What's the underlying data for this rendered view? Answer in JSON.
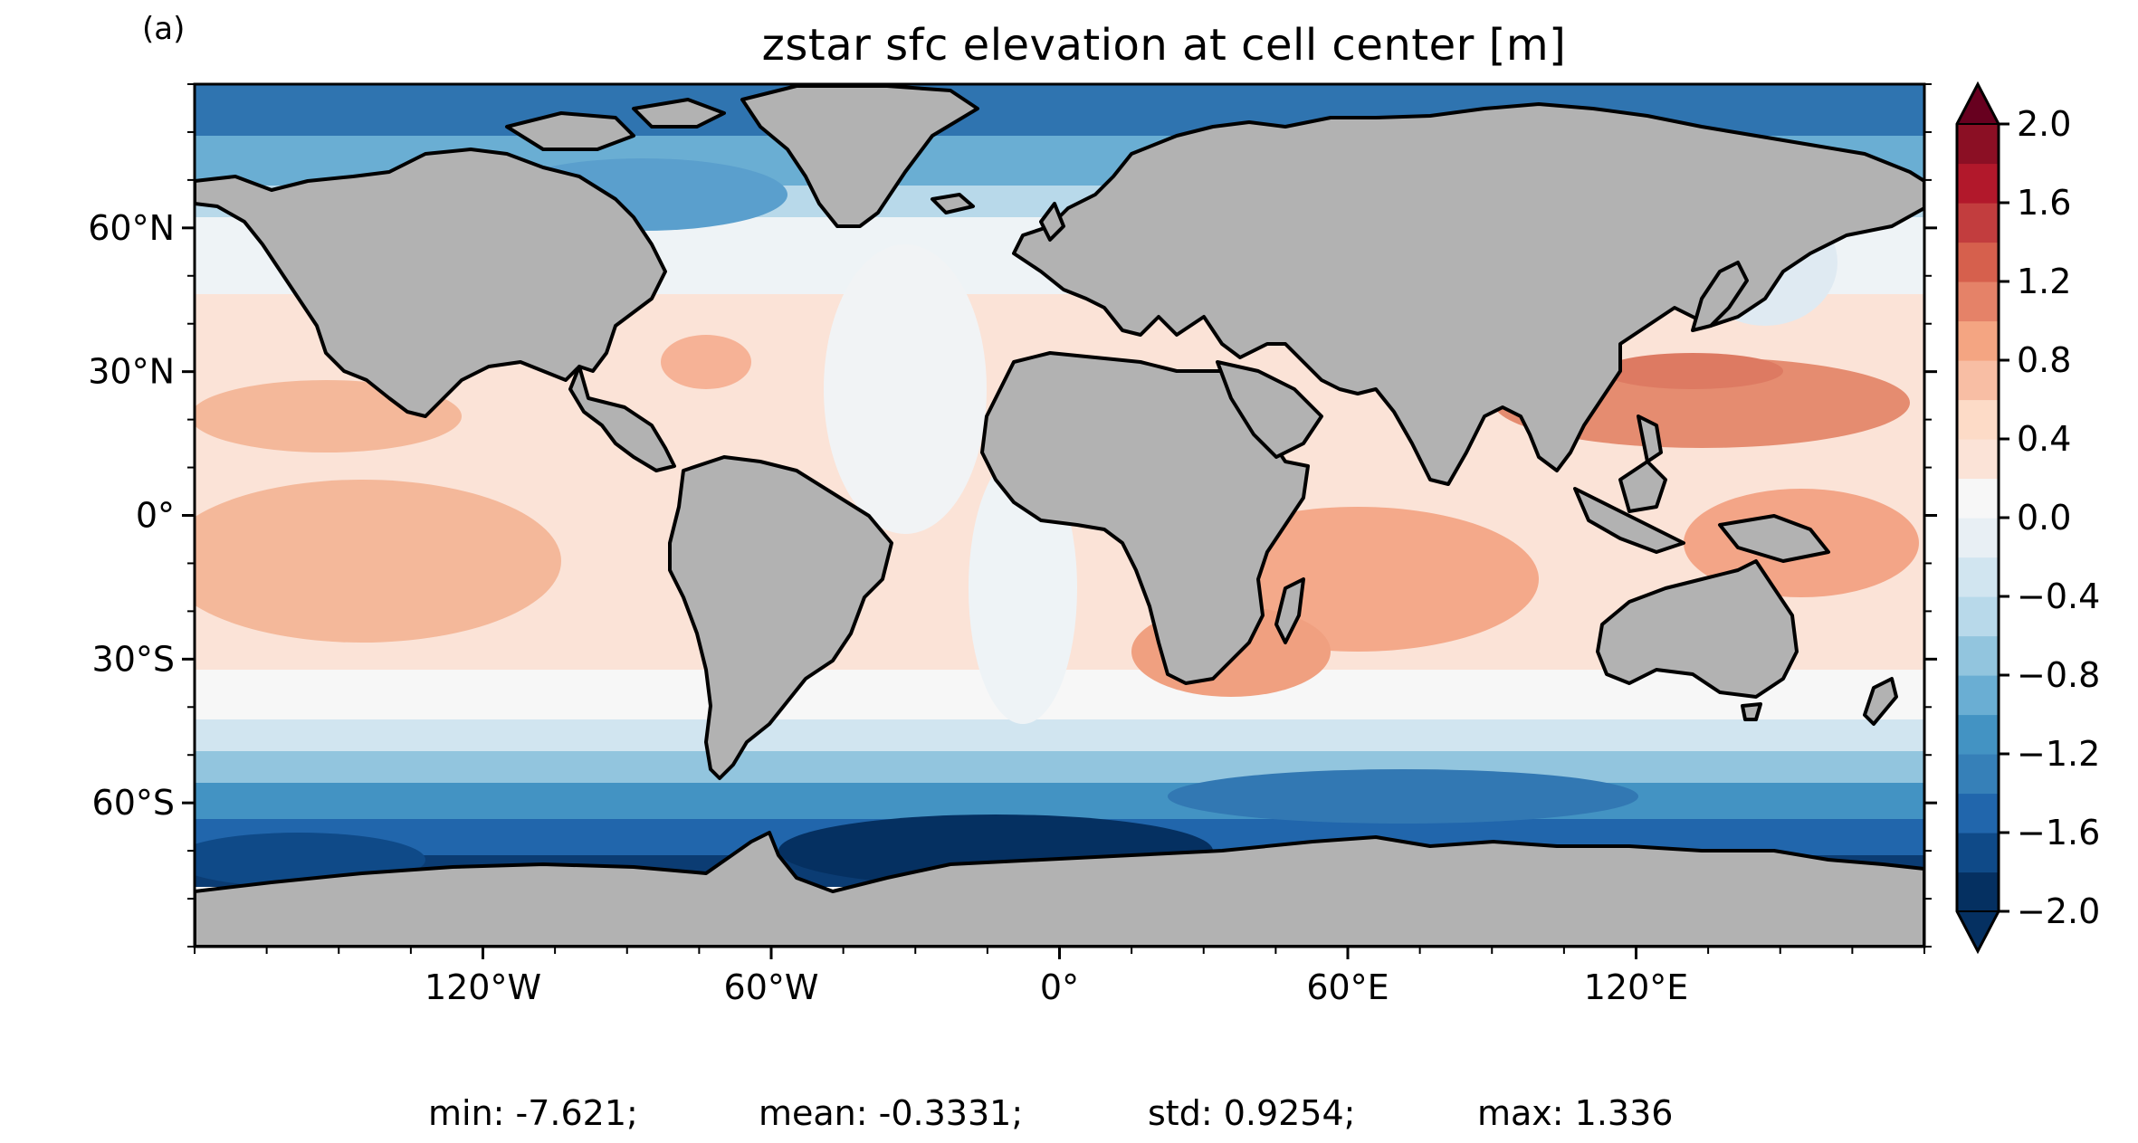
{
  "panel_label": "(a)",
  "title": "zstar sfc elevation at cell center [m]",
  "map": {
    "projection": "plate carree",
    "ocean_field": "sea surface elevation",
    "land_color": "#b2b2b2",
    "coastline_color": "#000000",
    "lon_ticks": [
      "120°W",
      "60°W",
      "0°",
      "60°E",
      "120°E"
    ],
    "lat_ticks": [
      "60°N",
      "30°N",
      "0°",
      "30°S",
      "60°S"
    ]
  },
  "colorbar": {
    "colormap": "RdBu_r",
    "range": [
      -2.0,
      2.0
    ],
    "extend": "both",
    "tick_labels": [
      "2.0",
      "1.6",
      "1.2",
      "0.8",
      "0.4",
      "0.0",
      "−0.4",
      "−0.8",
      "−1.2",
      "−1.6",
      "−2.0"
    ],
    "colors": [
      "#053061",
      "#0f4a88",
      "#2166ac",
      "#3680b8",
      "#4393c3",
      "#6aaed3",
      "#92c5de",
      "#b8d9ea",
      "#d1e5f0",
      "#e8eff4",
      "#f7f7f7",
      "#fbe3d7",
      "#fddbc7",
      "#f8bea4",
      "#f4a582",
      "#e58268",
      "#d6604d",
      "#c23d3e",
      "#b2182b",
      "#8b0f24"
    ]
  },
  "stats": {
    "min": "min: -7.621;",
    "mean": "mean: -0.3331;",
    "std": "std: 0.9254;",
    "max": "max: 1.336"
  }
}
